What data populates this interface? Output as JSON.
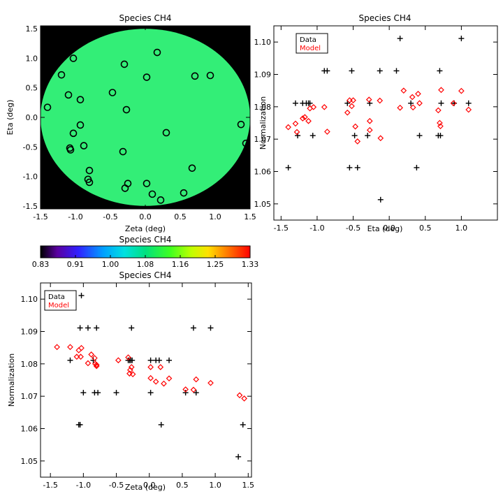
{
  "chart_data": [
    {
      "type": "scatter",
      "panel": "focal-plane",
      "title": "Species CH4",
      "xlabel": "Zeta (deg)",
      "ylabel": "Eta (deg)",
      "xlim": [
        -1.5,
        1.5
      ],
      "ylim": [
        -1.55,
        1.55
      ],
      "xticks": [
        "-1.5",
        "-1.0",
        "-0.5",
        "0.0",
        "0.5",
        "1.0",
        "1.5"
      ],
      "yticks": [
        "-1.5",
        "-1.0",
        "-0.5",
        "0.0",
        "0.5",
        "1.0",
        "1.5"
      ],
      "background": "#000000",
      "disk_color": "#33ee77",
      "disk_radius": 1.5,
      "points": [
        [
          -1.4,
          0.17
        ],
        [
          -1.03,
          1.0
        ],
        [
          -1.2,
          0.72
        ],
        [
          -1.1,
          0.38
        ],
        [
          -0.93,
          0.3
        ],
        [
          -1.03,
          -0.27
        ],
        [
          -0.93,
          -0.13
        ],
        [
          -1.08,
          -0.52
        ],
        [
          -1.07,
          -0.55
        ],
        [
          -0.88,
          -0.48
        ],
        [
          -0.8,
          -0.9
        ],
        [
          -0.82,
          -1.05
        ],
        [
          -0.8,
          -1.1
        ],
        [
          -0.3,
          0.9
        ],
        [
          -0.47,
          0.42
        ],
        [
          -0.27,
          0.13
        ],
        [
          -0.32,
          -0.58
        ],
        [
          -0.25,
          -1.12
        ],
        [
          -0.29,
          -1.2
        ],
        [
          0.02,
          0.68
        ],
        [
          0.17,
          1.1
        ],
        [
          0.02,
          -1.12
        ],
        [
          0.1,
          -1.3
        ],
        [
          0.22,
          -1.4
        ],
        [
          0.3,
          -0.26
        ],
        [
          0.55,
          -1.28
        ],
        [
          0.67,
          -0.86
        ],
        [
          0.71,
          0.7
        ],
        [
          0.93,
          0.71
        ],
        [
          1.37,
          -0.12
        ],
        [
          1.44,
          -0.44
        ]
      ]
    },
    {
      "type": "scatter",
      "panel": "colorbar",
      "title": "Species CH4",
      "ticks": [
        "0.83",
        "0.91",
        "1.00",
        "1.08",
        "1.16",
        "1.25",
        "1.33"
      ],
      "range": [
        0.83,
        1.33
      ]
    },
    {
      "type": "scatter",
      "panel": "vs-eta",
      "title": "Species CH4",
      "xlabel": "Eta (deg)",
      "ylabel": "Normalization",
      "xlim": [
        -1.6,
        1.5
      ],
      "ylim": [
        1.045,
        1.105
      ],
      "xticks": [
        "-1.5",
        "-1.0",
        "-0.5",
        "0.0",
        "0.5",
        "1.0"
      ],
      "yticks": [
        "1.05",
        "1.06",
        "1.07",
        "1.08",
        "1.09",
        "1.10"
      ],
      "legend": [
        "Data",
        "Model"
      ],
      "series": [
        {
          "name": "Data",
          "color": "#000000",
          "marker": "plus",
          "points": [
            [
              -1.4,
              1.0612
            ],
            [
              -1.3,
              1.0811
            ],
            [
              -1.27,
              1.0711
            ],
            [
              -1.2,
              1.0811
            ],
            [
              -1.15,
              1.0811
            ],
            [
              -1.12,
              1.0811
            ],
            [
              -1.1,
              1.0811
            ],
            [
              -1.06,
              1.0711
            ],
            [
              -0.9,
              1.0911
            ],
            [
              -0.86,
              1.0911
            ],
            [
              -0.58,
              1.0811
            ],
            [
              -0.55,
              1.0612
            ],
            [
              -0.52,
              1.0911
            ],
            [
              -0.48,
              1.0711
            ],
            [
              -0.44,
              1.0612
            ],
            [
              -0.3,
              1.0711
            ],
            [
              -0.27,
              1.0811
            ],
            [
              -0.13,
              1.0911
            ],
            [
              -0.12,
              1.0513
            ],
            [
              0.1,
              1.0911
            ],
            [
              0.15,
              1.1011
            ],
            [
              0.3,
              1.0811
            ],
            [
              0.38,
              1.0612
            ],
            [
              0.42,
              1.0711
            ],
            [
              0.68,
              1.0711
            ],
            [
              0.7,
              1.0911
            ],
            [
              0.71,
              1.0711
            ],
            [
              0.72,
              1.0811
            ],
            [
              0.9,
              1.0811
            ],
            [
              1.0,
              1.1011
            ],
            [
              1.1,
              1.0811
            ]
          ]
        },
        {
          "name": "Model",
          "color": "#ff0000",
          "marker": "diamond",
          "points": [
            [
              -1.4,
              1.0737
            ],
            [
              -1.3,
              1.0748
            ],
            [
              -1.28,
              1.0722
            ],
            [
              -1.2,
              1.0764
            ],
            [
              -1.17,
              1.0768
            ],
            [
              -1.12,
              1.0756
            ],
            [
              -1.1,
              1.0795
            ],
            [
              -1.05,
              1.0799
            ],
            [
              -0.9,
              1.0799
            ],
            [
              -0.86,
              1.0723
            ],
            [
              -0.58,
              1.0782
            ],
            [
              -0.55,
              1.082
            ],
            [
              -0.52,
              1.0802
            ],
            [
              -0.5,
              1.082
            ],
            [
              -0.47,
              1.0739
            ],
            [
              -0.44,
              1.0693
            ],
            [
              -0.28,
              1.0822
            ],
            [
              -0.27,
              1.0756
            ],
            [
              -0.27,
              1.0728
            ],
            [
              -0.13,
              1.0819
            ],
            [
              -0.12,
              1.0703
            ],
            [
              0.15,
              1.0797
            ],
            [
              0.2,
              1.085
            ],
            [
              0.32,
              1.083
            ],
            [
              0.33,
              1.0798
            ],
            [
              0.4,
              1.084
            ],
            [
              0.42,
              1.0811
            ],
            [
              0.68,
              1.0789
            ],
            [
              0.7,
              1.075
            ],
            [
              0.71,
              1.074
            ],
            [
              0.72,
              1.0852
            ],
            [
              0.89,
              1.0811
            ],
            [
              1.0,
              1.0849
            ],
            [
              1.1,
              1.0791
            ]
          ]
        }
      ]
    },
    {
      "type": "scatter",
      "panel": "vs-zeta",
      "title": "Species CH4",
      "xlabel": "Zeta (deg)",
      "ylabel": "Normalization",
      "xlim": [
        -1.65,
        1.55
      ],
      "ylim": [
        1.045,
        1.105
      ],
      "xticks": [
        "-1.5",
        "-1.0",
        "-0.5",
        "0.0",
        "0.5",
        "1.0",
        "1.5"
      ],
      "yticks": [
        "1.05",
        "1.06",
        "1.07",
        "1.08",
        "1.09",
        "1.10"
      ],
      "legend": [
        "Data",
        "Model"
      ],
      "series": [
        {
          "name": "Data",
          "color": "#000000",
          "marker": "plus",
          "points": [
            [
              -1.2,
              1.0811
            ],
            [
              -1.05,
              1.0612
            ],
            [
              -1.07,
              1.0612
            ],
            [
              -1.05,
              1.0911
            ],
            [
              -1.03,
              1.1011
            ],
            [
              -1.0,
              1.0711
            ],
            [
              -0.93,
              1.0911
            ],
            [
              -0.85,
              1.0811
            ],
            [
              -0.83,
              1.0711
            ],
            [
              -0.8,
              1.0911
            ],
            [
              -0.78,
              1.0711
            ],
            [
              -0.5,
              1.0711
            ],
            [
              -0.32,
              1.0811
            ],
            [
              -0.3,
              1.0811
            ],
            [
              -0.28,
              1.0811
            ],
            [
              -0.26,
              1.0811
            ],
            [
              -0.27,
              1.0911
            ],
            [
              0.02,
              1.0811
            ],
            [
              0.02,
              1.0711
            ],
            [
              0.1,
              1.0811
            ],
            [
              0.15,
              1.0811
            ],
            [
              0.18,
              1.0612
            ],
            [
              0.3,
              1.0811
            ],
            [
              0.55,
              1.0711
            ],
            [
              0.67,
              1.0911
            ],
            [
              0.71,
              1.0711
            ],
            [
              0.93,
              1.0911
            ],
            [
              1.35,
              1.0513
            ],
            [
              1.42,
              1.0612
            ]
          ]
        },
        {
          "name": "Model",
          "color": "#ff0000",
          "marker": "diamond",
          "points": [
            [
              -1.4,
              1.0852
            ],
            [
              -1.2,
              1.0852
            ],
            [
              -1.1,
              1.0822
            ],
            [
              -1.07,
              1.0842
            ],
            [
              -1.04,
              1.0822
            ],
            [
              -1.03,
              1.0849
            ],
            [
              -0.93,
              1.0802
            ],
            [
              -0.88,
              1.0829
            ],
            [
              -0.83,
              1.0818
            ],
            [
              -0.82,
              1.08
            ],
            [
              -0.8,
              1.0797
            ],
            [
              -0.8,
              1.0793
            ],
            [
              -0.47,
              1.0811
            ],
            [
              -0.32,
              1.082
            ],
            [
              -0.3,
              1.077
            ],
            [
              -0.29,
              1.0781
            ],
            [
              -0.27,
              1.079
            ],
            [
              -0.25,
              1.0768
            ],
            [
              0.02,
              1.079
            ],
            [
              0.02,
              1.0756
            ],
            [
              0.1,
              1.0745
            ],
            [
              0.17,
              1.079
            ],
            [
              0.22,
              1.0739
            ],
            [
              0.3,
              1.0755
            ],
            [
              0.55,
              1.0721
            ],
            [
              0.67,
              1.072
            ],
            [
              0.71,
              1.0752
            ],
            [
              0.93,
              1.0741
            ],
            [
              1.37,
              1.0703
            ],
            [
              1.44,
              1.0693
            ]
          ]
        }
      ]
    }
  ]
}
